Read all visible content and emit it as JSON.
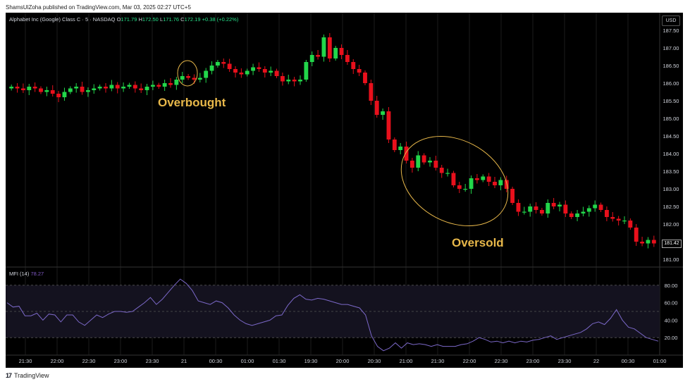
{
  "header": {
    "text": "ShamsUlZoha published on TradingView.com, Mar 03, 2025 02:27 UTC+5"
  },
  "footer": {
    "brand": "TradingView"
  },
  "legend": {
    "symbol": "Alphabet Inc (Google) Class C · 5 · NASDAQ",
    "o_label": "O",
    "o_value": "171.79",
    "h_label": "H",
    "h_value": "172.50",
    "l_label": "L",
    "l_value": "171.76",
    "c_label": "C",
    "c_value": "172.19",
    "change": "+0.38 (+0.22%)"
  },
  "currency": "USD",
  "last_price": "181.42",
  "mfi": {
    "label": "MFI (14)",
    "value": "78.27"
  },
  "annotations": {
    "overbought": "Overbought",
    "oversold": "Oversold"
  },
  "colors": {
    "up": "#22d64a",
    "down": "#e8101c",
    "background": "#000000",
    "mfi_line": "#7b68c8",
    "mfi_band": "#14121f",
    "annotation": "#e8b84a"
  },
  "chart_data": [
    {
      "type": "candlestick",
      "title": "",
      "price_axis": {
        "ticks": [
          "187.50",
          "187.00",
          "186.50",
          "186.00",
          "185.50",
          "185.00",
          "184.50",
          "184.00",
          "183.50",
          "183.00",
          "182.50",
          "182.00",
          "181.50",
          "181.00"
        ],
        "ylim": [
          180.8,
          188.0
        ]
      },
      "time_axis": {
        "ticks": [
          "21:30",
          "22:00",
          "22:30",
          "23:00",
          "23:30",
          "21",
          "00:30",
          "01:00",
          "01:30",
          "19:30",
          "20:00",
          "20:30",
          "21:00",
          "21:30",
          "22:00",
          "22:30",
          "23:00",
          "23:30",
          "22",
          "00:30",
          "01:00"
        ]
      },
      "close": [
        185.9,
        185.85,
        185.8,
        185.9,
        185.85,
        185.75,
        185.8,
        185.7,
        185.6,
        185.75,
        185.85,
        185.9,
        185.75,
        185.8,
        185.85,
        185.9,
        185.85,
        185.95,
        185.85,
        185.9,
        185.95,
        185.85,
        185.8,
        185.9,
        185.95,
        185.9,
        186.0,
        185.95,
        186.1,
        186.2,
        186.15,
        186.1,
        186.15,
        186.35,
        186.5,
        186.6,
        186.55,
        186.4,
        186.3,
        186.25,
        186.35,
        186.45,
        186.4,
        186.3,
        186.35,
        186.2,
        186.05,
        186.1,
        186.05,
        186.1,
        186.6,
        186.8,
        186.75,
        187.3,
        186.7,
        187.0,
        186.8,
        186.6,
        186.4,
        186.3,
        186.0,
        185.5,
        185.1,
        185.2,
        184.4,
        184.1,
        184.2,
        183.8,
        183.6,
        183.95,
        183.75,
        183.8,
        183.6,
        183.45,
        183.45,
        183.1,
        183.0,
        183.0,
        183.3,
        183.25,
        183.35,
        183.2,
        183.1,
        183.25,
        183.0,
        182.6,
        182.35,
        182.35,
        182.5,
        182.4,
        182.3,
        182.6,
        182.5,
        182.55,
        182.3,
        182.2,
        182.3,
        182.35,
        182.45,
        182.55,
        182.4,
        182.2,
        182.15,
        182.1,
        182.1,
        181.9,
        181.5,
        181.45,
        181.55,
        181.45
      ]
    },
    {
      "type": "line",
      "title": "",
      "series": [
        {
          "name": "MFI (14)",
          "values": [
            60,
            55,
            56,
            45,
            45,
            48,
            40,
            47,
            46,
            38,
            46,
            46,
            38,
            34,
            40,
            46,
            43,
            47,
            50,
            50,
            49,
            50,
            55,
            60,
            66,
            58,
            64,
            72,
            80,
            87,
            82,
            74,
            62,
            60,
            58,
            62,
            60,
            54,
            46,
            40,
            36,
            34,
            36,
            38,
            40,
            45,
            46,
            57,
            65,
            69,
            64,
            63,
            65,
            64,
            62,
            60,
            58,
            58,
            56,
            54,
            46,
            22,
            10,
            5,
            8,
            14,
            8,
            14,
            12,
            13,
            12,
            10,
            12,
            10,
            10,
            10,
            12,
            13,
            16,
            20,
            18,
            15,
            16,
            14,
            16,
            14,
            16,
            15,
            17,
            18,
            20,
            22,
            18,
            20,
            22,
            24,
            26,
            30,
            36,
            38,
            35,
            42,
            52,
            40,
            32,
            30,
            25,
            20,
            18,
            16
          ]
        }
      ],
      "ylim": [
        0,
        100
      ],
      "y_ticks": [
        "80.00",
        "60.00",
        "40.00",
        "20.00"
      ],
      "bands": [
        80,
        20
      ]
    }
  ]
}
